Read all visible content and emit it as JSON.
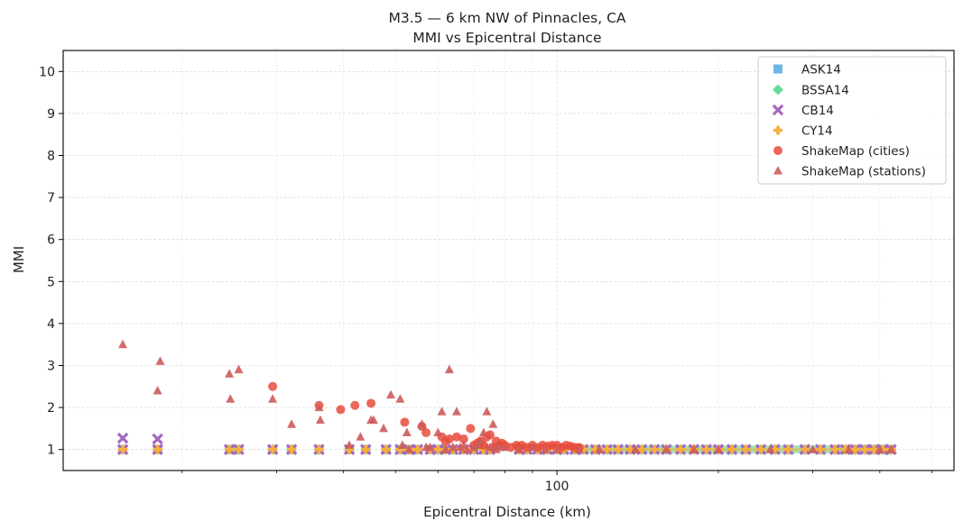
{
  "chart_data": {
    "type": "scatter",
    "title": "M3.5 — 6 km NW of Pinnacles, CA",
    "subtitle": "MMI vs Epicentral Distance",
    "xlabel": "Epicentral Distance (km)",
    "ylabel": "MMI",
    "xscale": "log",
    "xlim": [
      12,
      550
    ],
    "ylim": [
      0.5,
      10.5
    ],
    "xticks": [
      100
    ],
    "xtick_labels": [
      "100"
    ],
    "yticks": [
      1,
      2,
      3,
      4,
      5,
      6,
      7,
      8,
      9,
      10
    ],
    "ytick_labels": [
      "1",
      "2",
      "3",
      "4",
      "5",
      "6",
      "7",
      "8",
      "9",
      "10"
    ],
    "grid": true,
    "legend_position": "top-right",
    "legend": [
      "ASK14",
      "BSSA14",
      "CB14",
      "CY14",
      "ShakeMap (cities)",
      "ShakeMap (stations)"
    ],
    "gmpe_distances": [
      15.5,
      18,
      24.5,
      25.5,
      29.5,
      32,
      36,
      41,
      44,
      48,
      51,
      53,
      55,
      58,
      60,
      62,
      64,
      67,
      70,
      73,
      75,
      85,
      88,
      92,
      96,
      100,
      103,
      108,
      112,
      118,
      124,
      130,
      137,
      144,
      152,
      160,
      170,
      180,
      190,
      200,
      212,
      225,
      240,
      255,
      270,
      290,
      310,
      330,
      345,
      360,
      375,
      390,
      405,
      420
    ],
    "series": [
      {
        "name": "ASK14",
        "marker": "square",
        "color": "#5DADE2",
        "x": [
          15.5,
          18,
          24.5,
          25.5,
          29.5,
          32,
          36,
          41,
          44,
          48,
          51,
          53,
          55,
          58,
          60,
          62,
          64,
          67,
          70,
          73,
          75,
          85,
          88,
          92,
          96,
          100,
          103,
          108,
          112,
          118,
          124,
          130,
          137,
          144,
          152,
          160,
          170,
          180,
          190,
          200,
          212,
          225,
          240,
          255,
          270,
          290,
          310,
          330,
          345,
          360,
          375,
          390,
          405,
          420
        ],
        "y": [
          1,
          1,
          1,
          1,
          1,
          1,
          1,
          1,
          1,
          1,
          1,
          1,
          1,
          1,
          1,
          1,
          1,
          1,
          1,
          1,
          1,
          1,
          1,
          1,
          1,
          1,
          1,
          1,
          1,
          1,
          1,
          1,
          1,
          1,
          1,
          1,
          1,
          1,
          1,
          1,
          1,
          1,
          1,
          1,
          1,
          1,
          1,
          1,
          1,
          1,
          1,
          1,
          1,
          1
        ]
      },
      {
        "name": "BSSA14",
        "marker": "diamond",
        "color": "#58D68D",
        "x": [
          15.5,
          18,
          24.5,
          25.5,
          29.5,
          32,
          36,
          41,
          44,
          48,
          51,
          53,
          55,
          58,
          60,
          62,
          64,
          67,
          70,
          73,
          75,
          85,
          88,
          92,
          96,
          100,
          103,
          108,
          112,
          118,
          124,
          130,
          137,
          144,
          152,
          160,
          170,
          180,
          190,
          200,
          212,
          225,
          240,
          255,
          270,
          290,
          310,
          330,
          345,
          360,
          375,
          390,
          405,
          420
        ],
        "y": [
          1,
          1,
          1,
          1,
          1,
          1,
          1,
          1,
          1,
          1,
          1,
          1,
          1,
          1,
          1,
          1,
          1,
          1,
          1,
          1,
          1,
          1,
          1,
          1,
          1,
          1,
          1,
          1,
          1,
          1,
          1,
          1,
          1,
          1,
          1,
          1,
          1,
          1,
          1,
          1,
          1,
          1,
          1,
          1,
          1,
          1,
          1,
          1,
          1,
          1,
          1,
          1,
          1,
          1
        ]
      },
      {
        "name": "CB14",
        "marker": "x",
        "color": "#A569BD",
        "x": [
          15.5,
          18,
          15.5,
          18,
          24.5,
          25.5,
          29.5,
          32,
          36,
          41,
          44,
          48,
          51,
          53,
          55,
          58,
          60,
          62,
          64,
          67,
          70,
          73,
          75,
          85,
          88,
          92,
          96,
          100,
          103,
          108,
          112,
          118,
          124,
          130,
          137,
          144,
          152,
          160,
          170,
          180,
          190,
          200,
          212,
          225,
          240,
          255,
          270,
          290,
          310,
          330,
          345,
          360,
          375,
          390,
          405,
          420
        ],
        "y": [
          1.27,
          1.25,
          1,
          1,
          1,
          1,
          1,
          1,
          1,
          1,
          1,
          1,
          1,
          1,
          1,
          1,
          1,
          1,
          1,
          1,
          1,
          1,
          1,
          1,
          1,
          1,
          1,
          1,
          1,
          1,
          1,
          1,
          1,
          1,
          1,
          1,
          1,
          1,
          1,
          1,
          1,
          1,
          1,
          1,
          1,
          1,
          1,
          1,
          1,
          1,
          1,
          1,
          1,
          1,
          1,
          1
        ]
      },
      {
        "name": "CY14",
        "marker": "plus",
        "color": "#F5B041",
        "x": [
          15.5,
          18,
          24.5,
          25.5,
          29.5,
          32,
          36,
          41,
          44,
          48,
          51,
          53,
          55,
          58,
          60,
          62,
          64,
          67,
          70,
          73,
          75,
          85,
          88,
          92,
          96,
          100,
          103,
          108,
          112,
          118,
          124,
          130,
          137,
          144,
          152,
          160,
          170,
          180,
          190,
          200,
          212,
          225,
          240,
          255,
          270,
          290,
          310,
          330,
          345,
          360,
          375,
          390,
          405,
          420
        ],
        "y": [
          1,
          1,
          1,
          1,
          1,
          1,
          1,
          1,
          1,
          1,
          1,
          1,
          1,
          1,
          1,
          1,
          1,
          1,
          1,
          1,
          1,
          1,
          1,
          1,
          1,
          1,
          1,
          1,
          1,
          1,
          1,
          1,
          1,
          1,
          1,
          1,
          1,
          1,
          1,
          1,
          1,
          1,
          1,
          1,
          1,
          1,
          1,
          1,
          1,
          1,
          1,
          1,
          1,
          1
        ]
      },
      {
        "name": "ShakeMap (cities)",
        "marker": "circle",
        "color": "#E74C3C",
        "x": [
          29.5,
          36,
          39.5,
          42,
          45,
          52,
          56,
          57,
          61,
          62,
          63,
          65,
          67,
          69,
          70,
          71,
          72,
          73,
          74,
          75,
          76,
          77,
          78,
          79,
          80,
          82,
          84,
          85,
          86,
          88,
          90,
          92,
          94,
          96,
          98,
          100,
          102,
          104,
          106,
          108,
          110
        ],
        "y": [
          2.5,
          2.05,
          1.95,
          2.05,
          2.1,
          1.65,
          1.55,
          1.4,
          1.3,
          1.2,
          1.25,
          1.3,
          1.25,
          1.5,
          1.1,
          1.15,
          1.2,
          1.1,
          1.3,
          1.35,
          1.05,
          1.2,
          1.1,
          1.15,
          1.1,
          1.05,
          1.1,
          1.05,
          1.1,
          1.05,
          1.1,
          1.05,
          1.1,
          1.08,
          1.1,
          1.1,
          1.05,
          1.1,
          1.08,
          1.05,
          1.05
        ]
      },
      {
        "name": "ShakeMap (stations)",
        "marker": "triangle",
        "color": "#CD5C5C",
        "x": [
          15.5,
          18,
          18.2,
          24.5,
          24.6,
          25.5,
          29.5,
          32,
          36,
          36.2,
          41,
          43,
          45,
          45.5,
          47.5,
          49,
          51,
          51.5,
          52.5,
          53,
          56,
          57,
          58,
          60,
          61,
          62,
          63,
          64,
          65,
          66,
          67,
          68,
          70,
          71,
          72,
          73,
          74,
          75,
          76,
          77,
          78,
          80,
          85,
          90,
          95,
          100,
          110,
          120,
          140,
          160,
          180,
          200,
          250,
          300,
          350,
          400,
          420
        ],
        "y": [
          3.5,
          2.4,
          3.1,
          2.8,
          2.2,
          2.9,
          2.2,
          1.6,
          2.0,
          1.7,
          1.1,
          1.3,
          1.7,
          1.7,
          1.5,
          2.3,
          2.2,
          1.1,
          1.4,
          1.0,
          1.6,
          1.05,
          1.05,
          1.4,
          1.9,
          1.0,
          2.9,
          1.05,
          1.9,
          1.05,
          1.1,
          1.0,
          1.05,
          1.1,
          1.2,
          1.4,
          1.9,
          1.05,
          1.6,
          1.0,
          1.05,
          1.05,
          1.0,
          1.05,
          1.0,
          1.0,
          1.0,
          1.0,
          1.0,
          1.0,
          1.0,
          1.0,
          1.0,
          1.0,
          1.0,
          1.0,
          1.0
        ]
      }
    ]
  }
}
